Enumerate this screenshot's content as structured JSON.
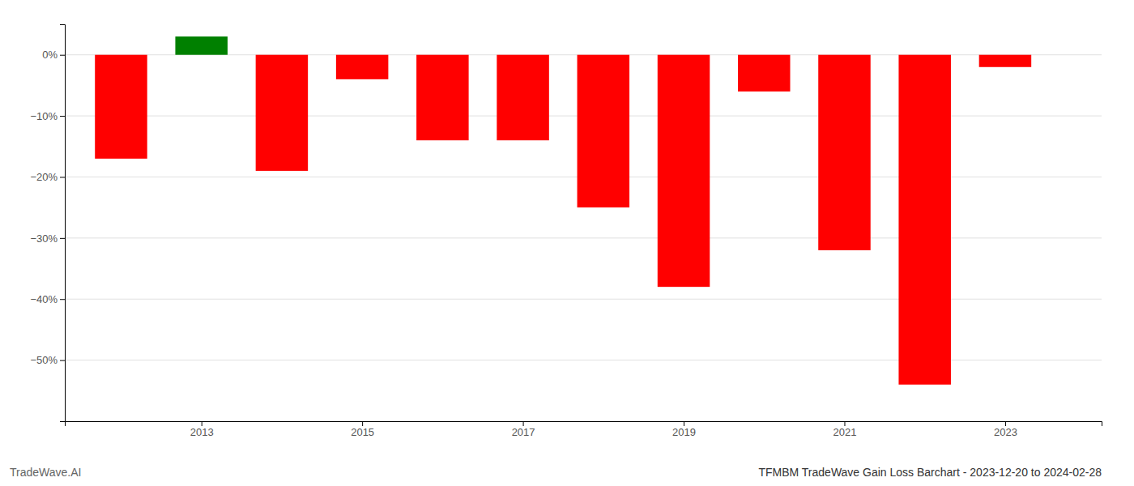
{
  "chart_data": {
    "type": "bar",
    "title": "TFMBM TradeWave Gain Loss Barchart - 2023-12-20 to 2024-02-28",
    "annotations": [
      "TradeWave.AI"
    ],
    "x": [
      2012,
      2013,
      2014,
      2015,
      2016,
      2017,
      2018,
      2019,
      2020,
      2021,
      2022,
      2023
    ],
    "values": [
      -17.0,
      3.0,
      -19.0,
      -4.0,
      -14.0,
      -14.0,
      -25.0,
      -38.0,
      -6.0,
      -32.0,
      -54.0,
      -2.0
    ],
    "colors": [
      "#ff0000",
      "#008000",
      "#ff0000",
      "#ff0000",
      "#ff0000",
      "#ff0000",
      "#ff0000",
      "#ff0000",
      "#ff0000",
      "#ff0000",
      "#ff0000",
      "#ff0000"
    ],
    "xlim": [
      2011.3,
      2024.2
    ],
    "xticks": [
      2013,
      2015,
      2017,
      2019,
      2021,
      2023
    ],
    "ylim": [
      -60,
      5
    ],
    "yticks": [
      {
        "value": 0,
        "label": "0%"
      },
      {
        "value": -10,
        "label": "−10%"
      },
      {
        "value": -20,
        "label": "−20%"
      },
      {
        "value": -30,
        "label": "−30%"
      },
      {
        "value": -40,
        "label": "−40%"
      },
      {
        "value": -50,
        "label": "−50%"
      }
    ],
    "grid": true
  }
}
